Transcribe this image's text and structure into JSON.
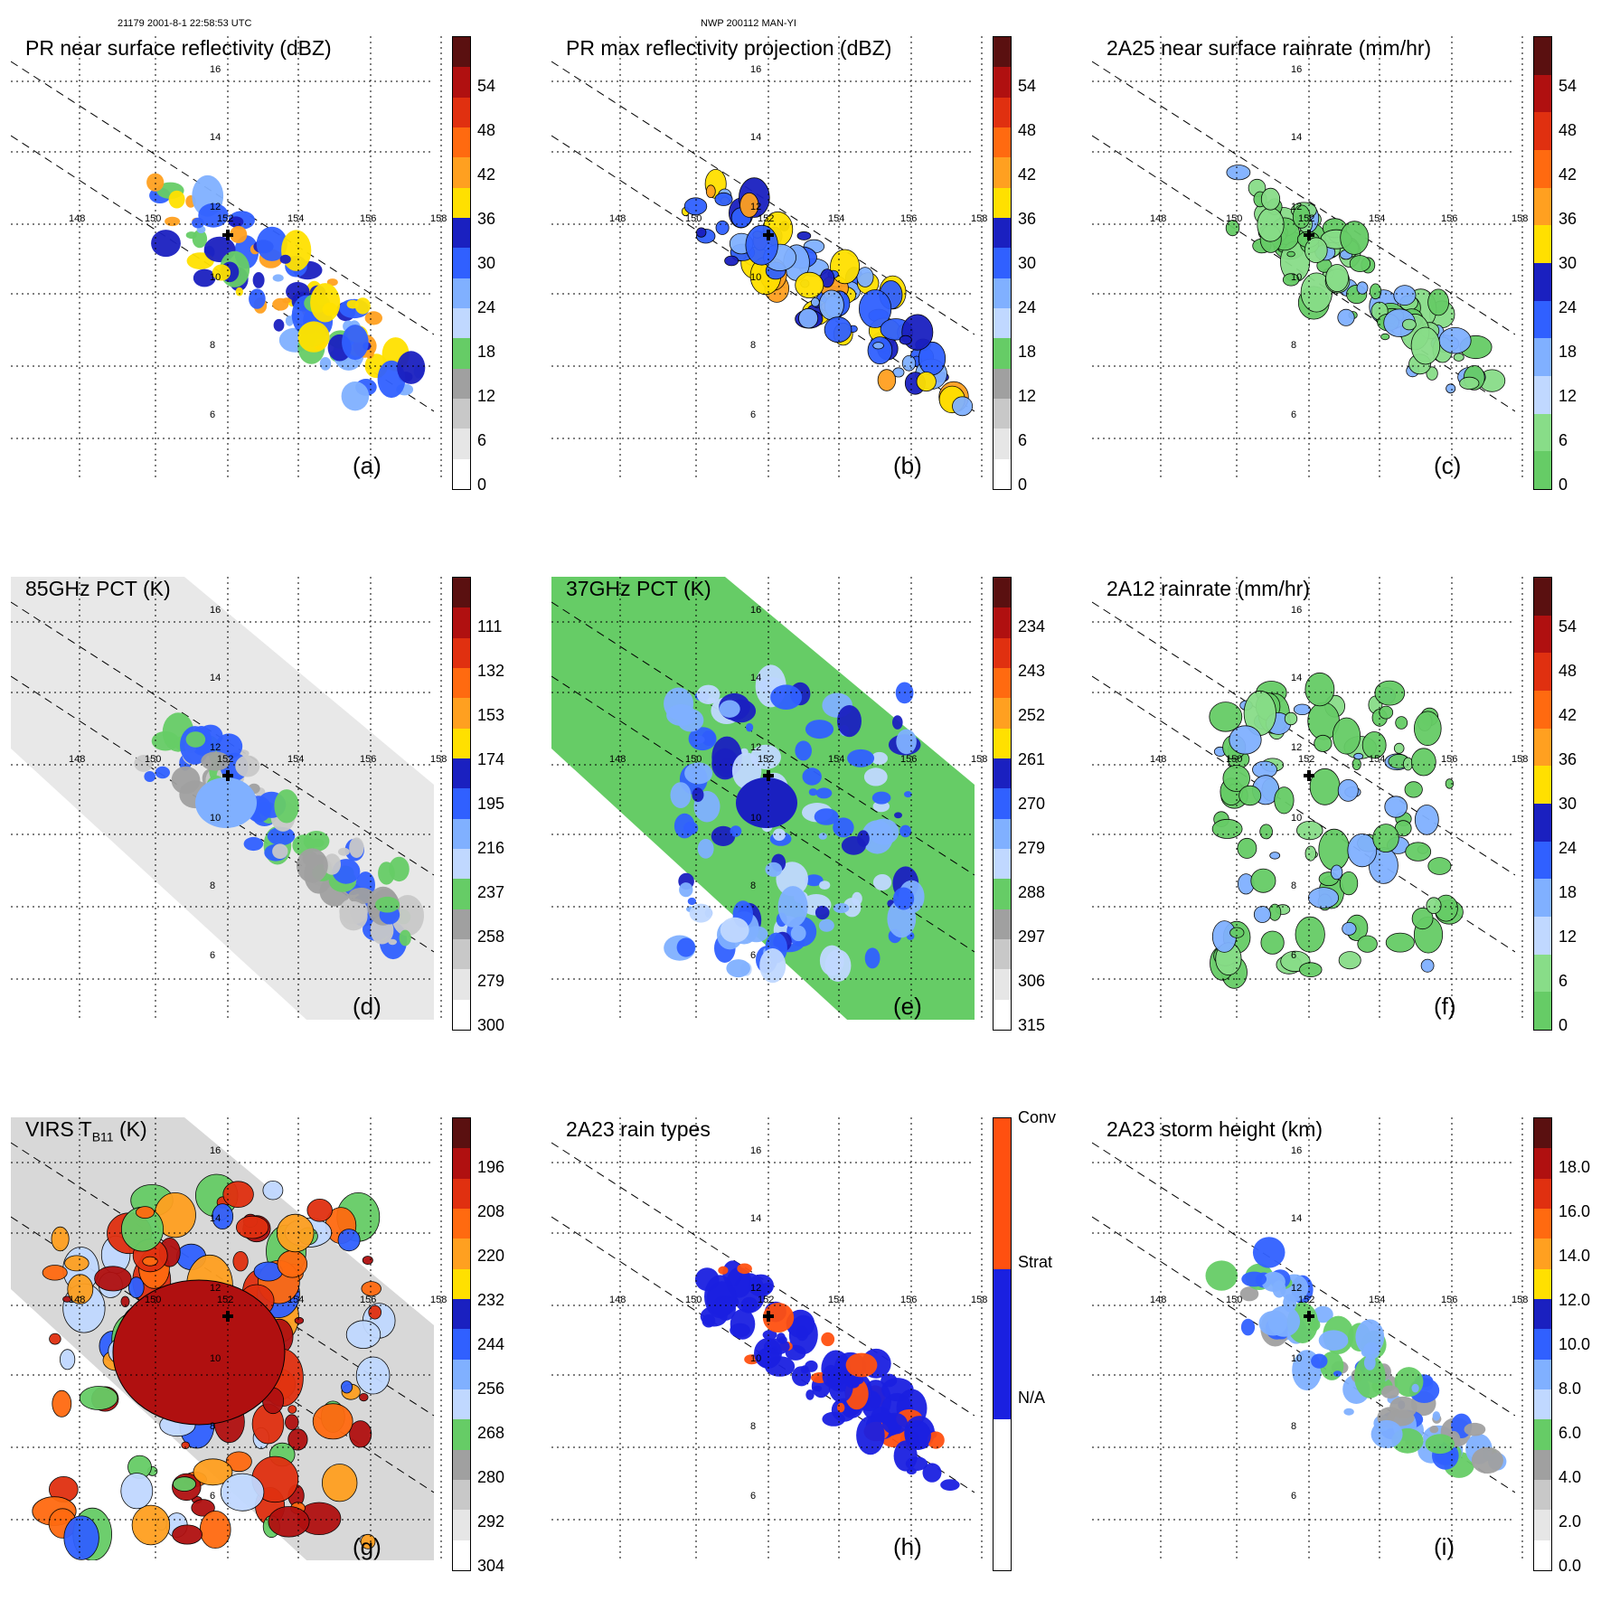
{
  "header": {
    "left": "21179 2001-8-1 22:58:53 UTC",
    "center": "NWP 200112 MAN-YI"
  },
  "map": {
    "lon_ticks": [
      "148",
      "150",
      "152",
      "154",
      "156",
      "158"
    ],
    "lat_ticks": [
      "16",
      "14",
      "12",
      "10",
      "8",
      "6"
    ]
  },
  "panels": [
    {
      "id": "a",
      "letter": "(a)",
      "title": "PR near surface reflectivity (dBZ)",
      "swath": "narrow",
      "field": "pr",
      "colorbar": {
        "labels": [
          "54",
          "48",
          "42",
          "36",
          "30",
          "24",
          "18",
          "12",
          "6",
          "0"
        ],
        "colors": [
          "#5a1010",
          "#b01010",
          "#e03010",
          "#ff6a10",
          "#ffa020",
          "#ffe000",
          "#1a20c0",
          "#3060ff",
          "#80b0ff",
          "#c0d8ff",
          "#66cc66",
          "#a0a0a0",
          "#c8c8c8",
          "#e6e6e6",
          "#ffffff"
        ]
      }
    },
    {
      "id": "b",
      "letter": "(b)",
      "title": "PR max reflectivity projection (dBZ)",
      "swath": "narrow",
      "field": "pr_max",
      "colorbar": {
        "labels": [
          "54",
          "48",
          "42",
          "36",
          "30",
          "24",
          "18",
          "12",
          "6",
          "0"
        ],
        "colors": [
          "#5a1010",
          "#b01010",
          "#e03010",
          "#ff6a10",
          "#ffa020",
          "#ffe000",
          "#1a20c0",
          "#3060ff",
          "#80b0ff",
          "#c0d8ff",
          "#66cc66",
          "#a0a0a0",
          "#c8c8c8",
          "#e6e6e6",
          "#ffffff"
        ]
      }
    },
    {
      "id": "c",
      "letter": "(c)",
      "title": "2A25 near surface rainrate (mm/hr)",
      "swath": "narrow",
      "field": "rain",
      "colorbar": {
        "labels": [
          "54",
          "48",
          "42",
          "36",
          "30",
          "24",
          "18",
          "12",
          "6",
          "0"
        ],
        "colors": [
          "#5a1010",
          "#b01010",
          "#e03010",
          "#ff6a10",
          "#ffa020",
          "#ffe000",
          "#1a20c0",
          "#3060ff",
          "#80b0ff",
          "#c0d8ff",
          "#88dd88",
          "#66cc66"
        ]
      }
    },
    {
      "id": "d",
      "letter": "(d)",
      "title": "85GHz PCT (K)",
      "swath": "wide",
      "field": "pct85",
      "colorbar": {
        "labels": [
          "111",
          "132",
          "153",
          "174",
          "195",
          "216",
          "237",
          "258",
          "279",
          "300"
        ],
        "colors": [
          "#5a1010",
          "#b01010",
          "#e03010",
          "#ff6a10",
          "#ffa020",
          "#ffe000",
          "#1a20c0",
          "#3060ff",
          "#80b0ff",
          "#c0d8ff",
          "#66cc66",
          "#a0a0a0",
          "#c8c8c8",
          "#e6e6e6",
          "#ffffff"
        ]
      }
    },
    {
      "id": "e",
      "letter": "(e)",
      "title": "37GHz PCT (K)",
      "swath": "wide",
      "field": "pct37",
      "colorbar": {
        "labels": [
          "234",
          "243",
          "252",
          "261",
          "270",
          "279",
          "288",
          "297",
          "306",
          "315"
        ],
        "colors": [
          "#5a1010",
          "#b01010",
          "#e03010",
          "#ff6a10",
          "#ffa020",
          "#ffe000",
          "#1a20c0",
          "#3060ff",
          "#80b0ff",
          "#c0d8ff",
          "#66cc66",
          "#a0a0a0",
          "#c8c8c8",
          "#e6e6e6",
          "#ffffff"
        ]
      }
    },
    {
      "id": "f",
      "letter": "(f)",
      "title": "2A12 rainrate (mm/hr)",
      "swath": "narrow",
      "field": "tmi_rain",
      "colorbar": {
        "labels": [
          "54",
          "48",
          "42",
          "36",
          "30",
          "24",
          "18",
          "12",
          "6",
          "0"
        ],
        "colors": [
          "#5a1010",
          "#b01010",
          "#e03010",
          "#ff6a10",
          "#ffa020",
          "#ffe000",
          "#1a20c0",
          "#3060ff",
          "#80b0ff",
          "#c0d8ff",
          "#88dd88",
          "#66cc66"
        ]
      }
    },
    {
      "id": "g",
      "letter": "(g)",
      "title": "VIRS T",
      "title_sub": "B11",
      "title_tail": " (K)",
      "swath": "wide",
      "field": "virs",
      "colorbar": {
        "labels": [
          "196",
          "208",
          "220",
          "232",
          "244",
          "256",
          "268",
          "280",
          "292",
          "304"
        ],
        "colors": [
          "#5a1010",
          "#b01010",
          "#e03010",
          "#ff6a10",
          "#ffa020",
          "#ffe000",
          "#1a20c0",
          "#3060ff",
          "#80b0ff",
          "#c0d8ff",
          "#66cc66",
          "#a0a0a0",
          "#c8c8c8",
          "#e6e6e6",
          "#ffffff"
        ]
      }
    },
    {
      "id": "h",
      "letter": "(h)",
      "title": "2A23 rain types",
      "swath": "narrow",
      "field": "types",
      "colorbar": {
        "labels": [
          "Conv",
          "Strat",
          "N/A"
        ],
        "colors": [
          "#ff5010",
          "#1a20e0",
          "#ffffff"
        ]
      }
    },
    {
      "id": "i",
      "letter": "(i)",
      "title": "2A23 storm height (km)",
      "swath": "narrow",
      "field": "height",
      "colorbar": {
        "labels": [
          "18.0",
          "16.0",
          "14.0",
          "12.0",
          "10.0",
          "8.0",
          "6.0",
          "4.0",
          "2.0",
          "0.0"
        ],
        "colors": [
          "#5a1010",
          "#b01010",
          "#e03010",
          "#ff6a10",
          "#ffa020",
          "#ffe000",
          "#1a20c0",
          "#3060ff",
          "#80b0ff",
          "#c0d8ff",
          "#66cc66",
          "#a0a0a0",
          "#c8c8c8",
          "#e6e6e6",
          "#ffffff"
        ]
      }
    }
  ]
}
